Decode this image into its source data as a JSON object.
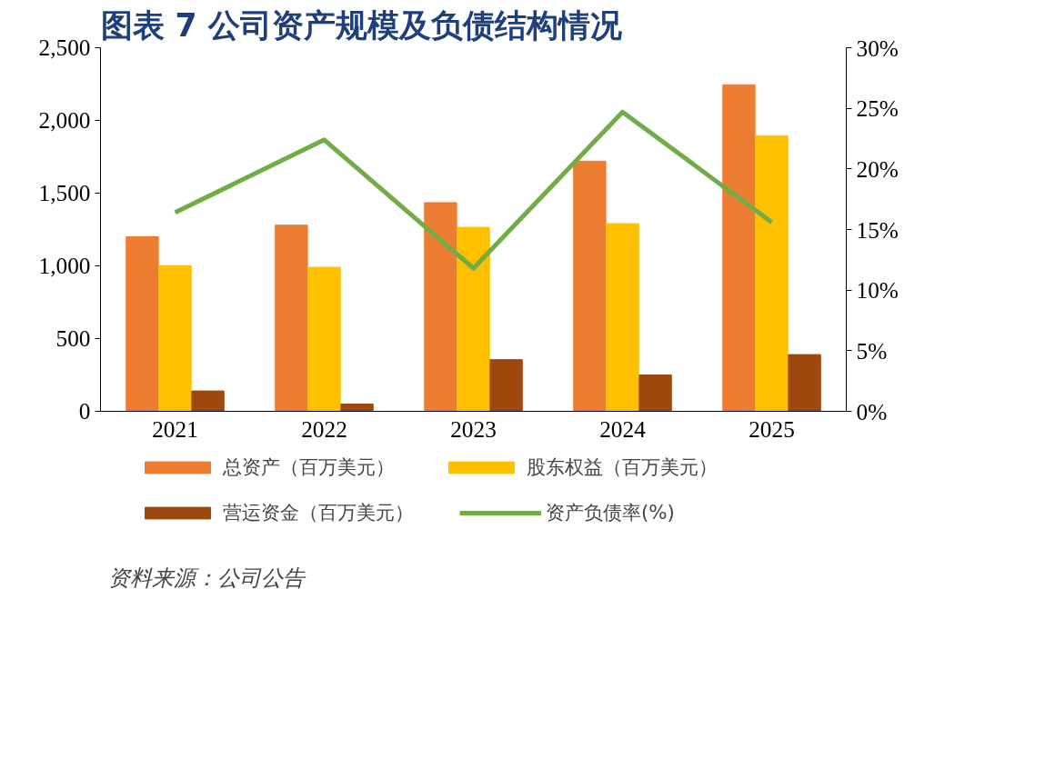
{
  "chart_data": {
    "type": "bar",
    "title": "图表 7   公司资产规模及负债结构情况",
    "categories": [
      "2021",
      "2022",
      "2023",
      "2024",
      "2025"
    ],
    "series": [
      {
        "name": "总资产（百万美元）",
        "color": "#ed7d31",
        "values": [
          1200,
          1280,
          1435,
          1720,
          2245
        ]
      },
      {
        "name": "股东权益（百万美元）",
        "color": "#ffc000",
        "values": [
          1000,
          990,
          1265,
          1290,
          1895
        ]
      },
      {
        "name": "营运资金（百万美元）",
        "color": "#9e480e",
        "values": [
          140,
          50,
          355,
          250,
          390
        ]
      },
      {
        "name": "资产负债率(%)",
        "color": "#70ad47",
        "type": "line",
        "axis": "y2",
        "values": [
          16.4,
          22.4,
          11.8,
          24.7,
          15.6
        ]
      }
    ],
    "ylim": [
      0,
      2500
    ],
    "yticks": [
      0,
      {
        "value": 500,
        "label": "500"
      },
      {
        "value": 1000,
        "label": "1,000"
      },
      {
        "value": 1500,
        "label": "1,500"
      },
      {
        "value": 2000,
        "label": "2,000"
      },
      {
        "value": 2500,
        "label": "2,500"
      }
    ],
    "y2lim": [
      0,
      30
    ],
    "y2ticks": [
      {
        "value": 0,
        "label": "0%"
      },
      {
        "value": 5,
        "label": "5%"
      },
      {
        "value": 10,
        "label": "10%"
      },
      {
        "value": 15,
        "label": "15%"
      },
      {
        "value": 20,
        "label": "20%"
      },
      {
        "value": 25,
        "label": "25%"
      },
      {
        "value": 30,
        "label": "30%"
      }
    ],
    "grid": false,
    "legend": "bottom",
    "marker": "none",
    "line_style": "solid",
    "annotations": [
      "资料来源：公司公告"
    ]
  }
}
